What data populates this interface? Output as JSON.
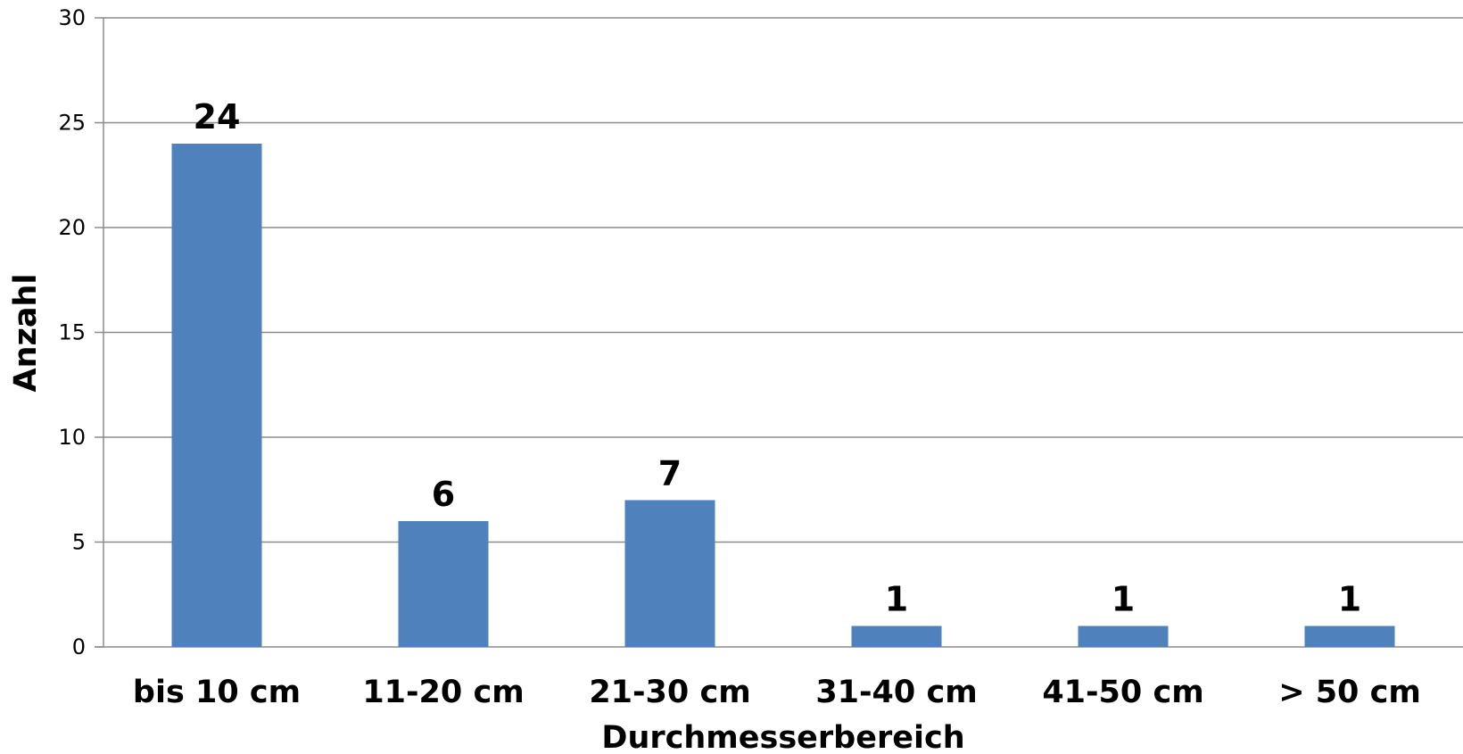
{
  "chart_data": {
    "type": "bar",
    "categories": [
      "bis 10 cm",
      "11-20 cm",
      "21-30 cm",
      "31-40 cm",
      "41-50 cm",
      "> 50 cm"
    ],
    "values": [
      24,
      6,
      7,
      1,
      1,
      1
    ],
    "data_labels": [
      "24",
      "6",
      "7",
      "1",
      "1",
      "1"
    ],
    "xlabel": "Durchmesserbereich",
    "ylabel": "Anzahl",
    "ylim": [
      0,
      30
    ],
    "yticks": [
      0,
      5,
      10,
      15,
      20,
      25,
      30
    ],
    "ytick_labels": [
      "0",
      "5",
      "10",
      "15",
      "20",
      "25",
      "30"
    ],
    "grid": true,
    "legend": "none",
    "colors": {
      "bar": "#4F81BD",
      "grid": "#8C8C8C",
      "axis": "#8C8C8C"
    }
  }
}
